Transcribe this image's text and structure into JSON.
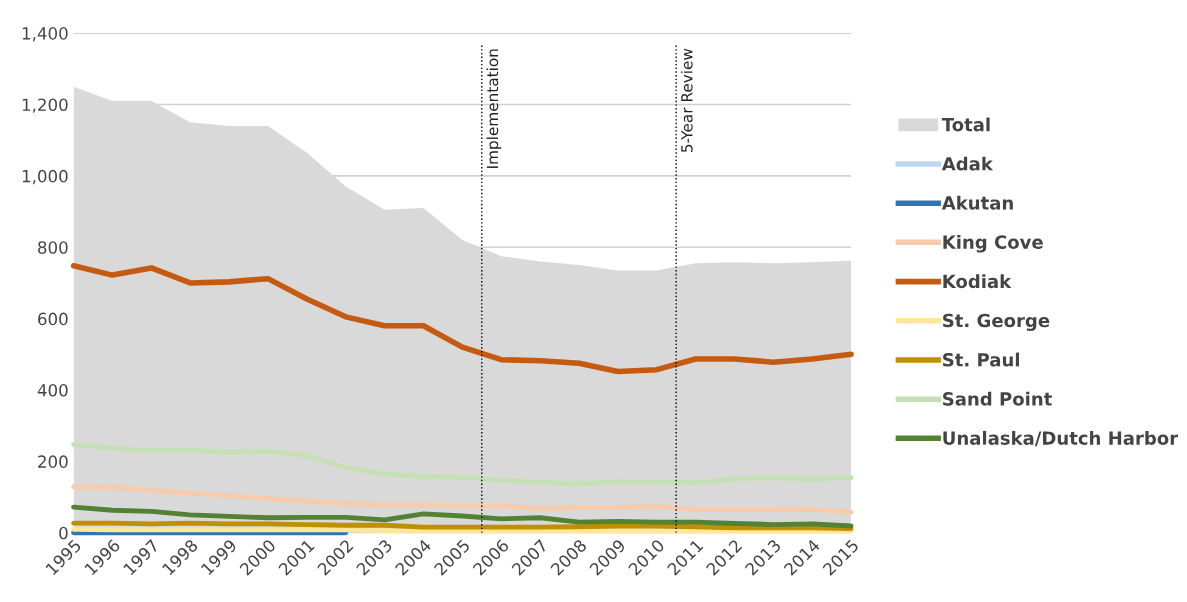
{
  "chart_data": {
    "type": "line",
    "x": [
      1995,
      1996,
      1997,
      1998,
      1999,
      2000,
      2001,
      2002,
      2003,
      2004,
      2005,
      2006,
      2007,
      2008,
      2009,
      2010,
      2011,
      2012,
      2013,
      2014,
      2015
    ],
    "xlim": [
      1995,
      2015
    ],
    "xticks": [
      1995,
      1996,
      1997,
      1998,
      1999,
      2000,
      2001,
      2002,
      2003,
      2004,
      2005,
      2006,
      2007,
      2008,
      2009,
      2010,
      2011,
      2012,
      2013,
      2014,
      2015
    ],
    "ylim": [
      0,
      1400
    ],
    "yticks": [
      {
        "value": 0,
        "label": "0"
      },
      {
        "value": 200,
        "label": "200"
      },
      {
        "value": 400,
        "label": "400"
      },
      {
        "value": 600,
        "label": "600"
      },
      {
        "value": 800,
        "label": "800"
      },
      {
        "value": 1000,
        "label": "1,000"
      },
      {
        "value": 1200,
        "label": "1,200"
      },
      {
        "value": 1400,
        "label": "1,400"
      }
    ],
    "grid": "y",
    "legend": "right",
    "marker": "none",
    "line_style": "solid",
    "ref_lines": [
      {
        "axis": "x",
        "value": 2005.5,
        "label": "Implementation",
        "color": "#000000",
        "line_style": "dotted"
      },
      {
        "axis": "x",
        "value": 2010.5,
        "label": "5-Year Review",
        "color": "#000000",
        "line_style": "dotted"
      }
    ],
    "series": [
      {
        "name": "Total",
        "type": "area",
        "color": "#d9d9d9",
        "values": [
          1250,
          1210,
          1210,
          1150,
          1140,
          1140,
          1065,
          970,
          905,
          910,
          820,
          775,
          760,
          750,
          735,
          735,
          755,
          758,
          755,
          758,
          762
        ]
      },
      {
        "name": "Adak",
        "color": "#bdd7ee",
        "values": [
          null,
          null,
          null,
          null,
          null,
          null,
          null,
          null,
          null,
          null,
          null,
          null,
          null,
          null,
          null,
          null,
          null,
          null,
          null,
          null,
          null
        ]
      },
      {
        "name": "Akutan",
        "color": "#2e75b6",
        "values": [
          0,
          0,
          0,
          0,
          0,
          0,
          0,
          0,
          null,
          null,
          null,
          null,
          null,
          null,
          null,
          null,
          null,
          null,
          null,
          null,
          null
        ]
      },
      {
        "name": "King Cove",
        "color": "#f8cbad",
        "values": [
          129,
          127,
          118,
          111,
          104,
          96,
          89,
          82,
          78,
          78,
          75,
          75,
          68,
          71,
          71,
          74,
          65,
          65,
          65,
          66,
          58
        ]
      },
      {
        "name": "Kodiak",
        "color": "#c55a11",
        "values": [
          748,
          722,
          742,
          700,
          703,
          712,
          655,
          605,
          580,
          580,
          520,
          485,
          482,
          475,
          452,
          457,
          487,
          487,
          478,
          487,
          500
        ]
      },
      {
        "name": "St. George",
        "color": "#ffe699",
        "values": [
          10,
          8,
          8,
          8,
          8,
          8,
          8,
          8,
          6,
          5,
          5,
          5,
          5,
          5,
          5,
          5,
          5,
          5,
          5,
          5,
          5
        ]
      },
      {
        "name": "St. Paul",
        "color": "#bf9000",
        "values": [
          27,
          27,
          25,
          27,
          25,
          25,
          23,
          21,
          21,
          16,
          16,
          16,
          16,
          17,
          19,
          19,
          17,
          14,
          14,
          14,
          12
        ]
      },
      {
        "name": "Sand Point",
        "color": "#c5e0b4",
        "values": [
          247,
          237,
          230,
          232,
          226,
          229,
          216,
          183,
          164,
          158,
          155,
          147,
          142,
          137,
          144,
          142,
          140,
          151,
          154,
          150,
          155
        ]
      },
      {
        "name": "Unalaska/Dutch Harbor",
        "color": "#548235",
        "values": [
          72,
          63,
          60,
          50,
          46,
          42,
          43,
          43,
          36,
          53,
          47,
          39,
          42,
          30,
          32,
          30,
          30,
          26,
          23,
          25,
          19
        ]
      }
    ]
  }
}
